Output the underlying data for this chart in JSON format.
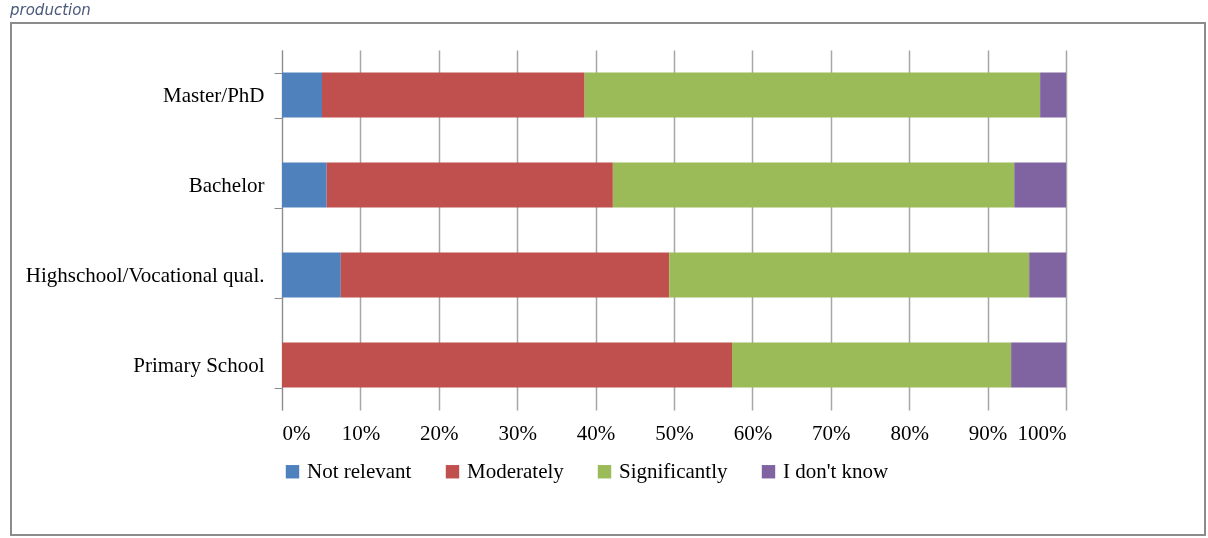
{
  "chart_data": {
    "type": "bar",
    "orientation": "horizontal",
    "stacked": true,
    "categories": [
      "Master/PhD",
      "Bachelor",
      "Highschool/Vocational qual.",
      "Primary School"
    ],
    "series": [
      {
        "name": "Not relevant",
        "color": "#4f81bd",
        "values": [
          5.1,
          5.7,
          7.5,
          0
        ]
      },
      {
        "name": "Moderately",
        "color": "#c0504d",
        "values": [
          33.5,
          36.5,
          41.9,
          57.4
        ]
      },
      {
        "name": "Significantly",
        "color": "#9bbb59",
        "values": [
          58.1,
          51.2,
          45.9,
          35.6
        ]
      },
      {
        "name": "I don't know",
        "color": "#8064a2",
        "values": [
          3.3,
          6.6,
          4.7,
          7.0
        ]
      }
    ],
    "xlim": [
      0,
      100
    ],
    "xticks": [
      {
        "value": 0,
        "label": "0%"
      },
      {
        "value": 10,
        "label": "10%"
      },
      {
        "value": 20,
        "label": "20%"
      },
      {
        "value": 30,
        "label": "30%"
      },
      {
        "value": 40,
        "label": "40%"
      },
      {
        "value": 50,
        "label": "50%"
      },
      {
        "value": 60,
        "label": "60%"
      },
      {
        "value": 70,
        "label": "70%"
      },
      {
        "value": 80,
        "label": "80%"
      },
      {
        "value": 90,
        "label": "90%"
      },
      {
        "value": 100,
        "label": "100%"
      }
    ],
    "grid": "x",
    "legend": "bottom",
    "annotations": [
      "production"
    ]
  }
}
